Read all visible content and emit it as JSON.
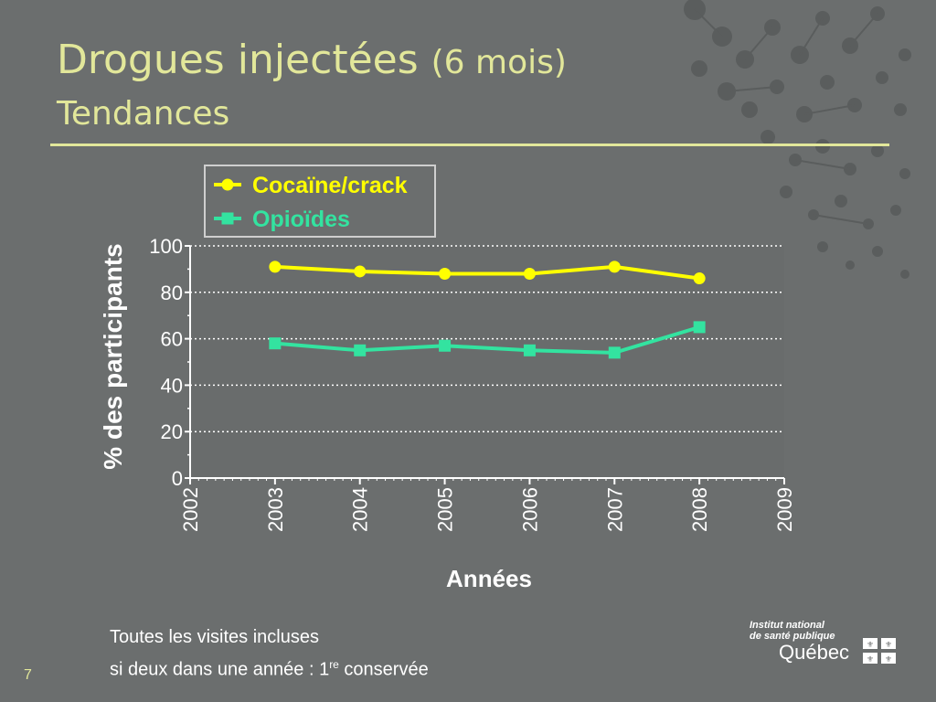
{
  "slide": {
    "title_main": "Drogues injectées",
    "title_paren": "(6 mois)",
    "subtitle": "Tendances",
    "footnote_line1": "Toutes les visites incluses",
    "footnote_line2_pre": "si deux dans une année : 1",
    "footnote_line2_sup": "re",
    "footnote_line2_post": " conservée",
    "page_number": "7",
    "logo_line1": "Institut national",
    "logo_line2": "de santé publique",
    "logo_line3": "Québec",
    "colors": {
      "background": "#6b6e6e",
      "title": "#e2e79a",
      "cocaine": "#ffff00",
      "opioides": "#33e3a0"
    }
  },
  "chart_data": {
    "type": "line",
    "title": "",
    "xlabel": "Années",
    "ylabel": "% des participants",
    "xlim": [
      2002,
      2009
    ],
    "ylim": [
      0,
      100
    ],
    "xticks": [
      "2002",
      "2003",
      "2004",
      "2005",
      "2006",
      "2007",
      "2008",
      "2009"
    ],
    "yticks": [
      "0",
      "20",
      "40",
      "60",
      "80",
      "100"
    ],
    "grid": "horizontal-dotted",
    "legend_position": "top-right",
    "x": [
      2003,
      2004,
      2005,
      2006,
      2007,
      2008
    ],
    "series": [
      {
        "name": "Cocaïne/crack",
        "marker": "circle",
        "color": "#ffff00",
        "values": [
          91,
          89,
          88,
          88,
          91,
          86
        ]
      },
      {
        "name": "Opioïdes",
        "marker": "square",
        "color": "#33e3a0",
        "values": [
          58,
          55,
          57,
          55,
          54,
          65
        ]
      }
    ]
  }
}
